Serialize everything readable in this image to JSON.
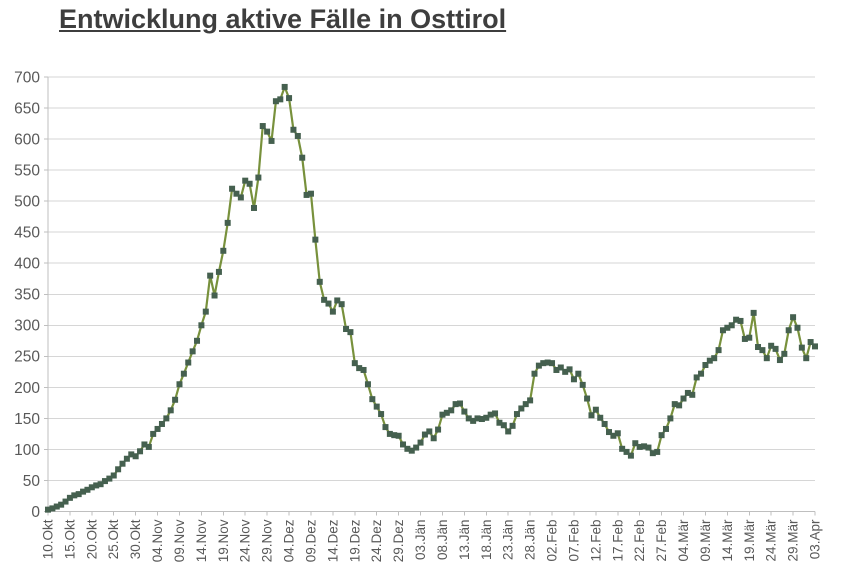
{
  "title": "Entwicklung aktive Fälle in Osttirol",
  "colors": {
    "background": "#ffffff",
    "title_text": "#3e3e3e",
    "line": "#78913c",
    "marker": "#45604f",
    "gridline": "#d6d6d6",
    "axis_line": "#bfbfbf",
    "tick_text": "#595959"
  },
  "chart_data": {
    "type": "line",
    "title": "Entwicklung aktive Fälle in Osttirol",
    "xlabel": "",
    "ylabel": "",
    "ylim": [
      0,
      700
    ],
    "y_ticks": [
      0,
      50,
      100,
      150,
      200,
      250,
      300,
      350,
      400,
      450,
      500,
      550,
      600,
      650,
      700
    ],
    "grid": "horizontal",
    "legend": "none",
    "marker": "square",
    "x_tick_interval_days": 5,
    "x_tick_labels": [
      "10.Okt",
      "15.Okt",
      "20.Okt",
      "25.Okt",
      "30.Okt",
      "04.Nov",
      "09.Nov",
      "14.Nov",
      "19.Nov",
      "24.Nov",
      "29.Nov",
      "04.Dez",
      "09.Dez",
      "14.Dez",
      "19.Dez",
      "24.Dez",
      "29.Dez",
      "03.Jän",
      "08.Jän",
      "13.Jän",
      "18.Jän",
      "23.Jän",
      "28.Jän",
      "02.Feb",
      "07.Feb",
      "12.Feb",
      "17.Feb",
      "22.Feb",
      "27.Feb",
      "04.Mär",
      "09.Mär",
      "14.Mär",
      "19.Mär",
      "24.Mär",
      "29.Mär",
      "03.Apr"
    ],
    "values": [
      3,
      5,
      8,
      11,
      16,
      22,
      26,
      28,
      32,
      35,
      39,
      42,
      44,
      49,
      53,
      58,
      68,
      77,
      85,
      92,
      89,
      97,
      108,
      104,
      125,
      133,
      141,
      150,
      163,
      180,
      205,
      222,
      240,
      258,
      275,
      300,
      322,
      380,
      348,
      386,
      420,
      465,
      520,
      512,
      506,
      533,
      528,
      489,
      538,
      621,
      612,
      597,
      661,
      664,
      684,
      666,
      615,
      605,
      570,
      510,
      512,
      438,
      370,
      341,
      335,
      322,
      340,
      334,
      294,
      289,
      239,
      231,
      228,
      205,
      181,
      169,
      157,
      136,
      125,
      123,
      122,
      108,
      101,
      98,
      103,
      111,
      124,
      129,
      118,
      132,
      156,
      159,
      163,
      173,
      174,
      161,
      150,
      146,
      150,
      149,
      151,
      156,
      158,
      143,
      139,
      129,
      138,
      157,
      166,
      173,
      179,
      222,
      235,
      239,
      240,
      239,
      228,
      232,
      225,
      229,
      213,
      222,
      204,
      182,
      155,
      164,
      151,
      141,
      128,
      122,
      126,
      101,
      96,
      90,
      110,
      104,
      105,
      103,
      94,
      96,
      123,
      133,
      150,
      173,
      171,
      182,
      191,
      188,
      216,
      222,
      236,
      243,
      247,
      260,
      292,
      296,
      300,
      309,
      307,
      278,
      280,
      320,
      265,
      260,
      247,
      267,
      262,
      244,
      254,
      292,
      313,
      296,
      264,
      247,
      273,
      266
    ]
  }
}
